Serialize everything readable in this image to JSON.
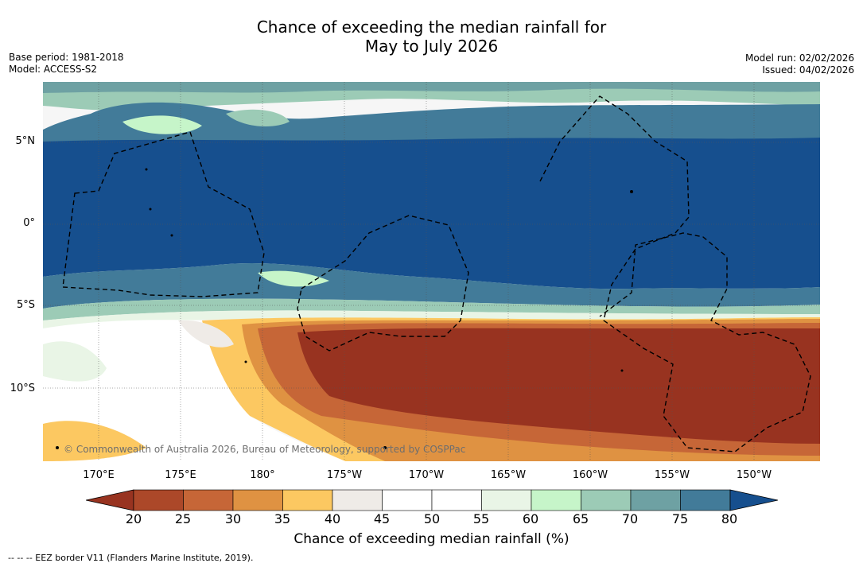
{
  "title": {
    "line1": "Chance of exceeding the median rainfall for",
    "line2": "May to July 2026"
  },
  "meta": {
    "base_period": "Base period: 1981-2018",
    "model": "Model: ACCESS-S2",
    "model_run": "Model run: 02/02/2026",
    "issued": "Issued: 04/02/2026"
  },
  "map": {
    "lat_labels": [
      "5°N",
      "0°",
      "5°S",
      "10°S"
    ],
    "lon_labels": [
      "170°E",
      "175°E",
      "180°",
      "175°W",
      "170°W",
      "165°W",
      "160°W",
      "155°W",
      "150°W"
    ],
    "attribution": "© Commonwealth of Australia 2026, Bureau of Meteorology, supported by COSPPac"
  },
  "colorbar": {
    "label": "Chance of exceeding median rainfall (%)",
    "ticks": [
      "20",
      "25",
      "30",
      "35",
      "40",
      "45",
      "50",
      "55",
      "60",
      "65",
      "70",
      "75",
      "80"
    ],
    "colors": [
      "#983320",
      "#ac4829",
      "#c66637",
      "#df9242",
      "#fcc861",
      "#efebe7",
      "#ffffff",
      "#ffffff",
      "#e9f5e6",
      "#c6f5c9",
      "#9ccbb6",
      "#6ea1a3",
      "#427b99",
      "#164f8e"
    ]
  },
  "footnote": "--  --  -- EEZ border V11 (Flanders Marine Institute, 2019)."
}
